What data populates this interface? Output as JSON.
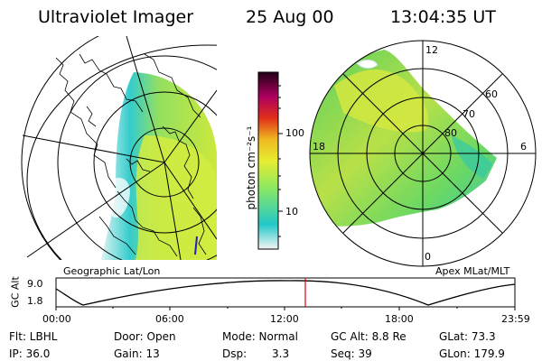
{
  "header": {
    "instrument": "Ultraviolet Imager",
    "date": "25 Aug 00",
    "time": "13:04:35 UT"
  },
  "left_panel": {
    "label": "Geographic Lat/Lon"
  },
  "right_panel": {
    "label": "Apex MLat/MLT",
    "lat_labels": [
      "80",
      "70",
      "60"
    ],
    "mlt_labels": {
      "top": "12",
      "left": "18",
      "right": "6",
      "bottom": "0"
    }
  },
  "colorbar": {
    "axis_label": "photon cm⁻²s⁻¹",
    "ticks": [
      "100",
      "10"
    ],
    "colors": [
      "#f4f4f4",
      "#22c8c8",
      "#8ee860",
      "#e8ec30",
      "#f0b820",
      "#e03018",
      "#b00060",
      "#200018"
    ]
  },
  "altitude_plot": {
    "ylabel": "GC Alt",
    "y_ticks": [
      "9.0",
      "1.8"
    ],
    "x_ticks": [
      "00:00",
      "06:00",
      "12:00",
      "18:00",
      "23:59"
    ],
    "marker_color": "#e00000"
  },
  "info": {
    "filter": "Flt: LBHL",
    "ip": "IP: 36.0",
    "door": "Door: Open",
    "gain": "Gain: 13",
    "mode": "Mode: Normal",
    "dsp_label": "Dsp:",
    "dsp_value": "3.3",
    "gc_alt": "GC Alt: 8.8 Re",
    "seq": "Seq: 39",
    "glat": "GLat: 73.3",
    "glon": "GLon: 179.9"
  }
}
